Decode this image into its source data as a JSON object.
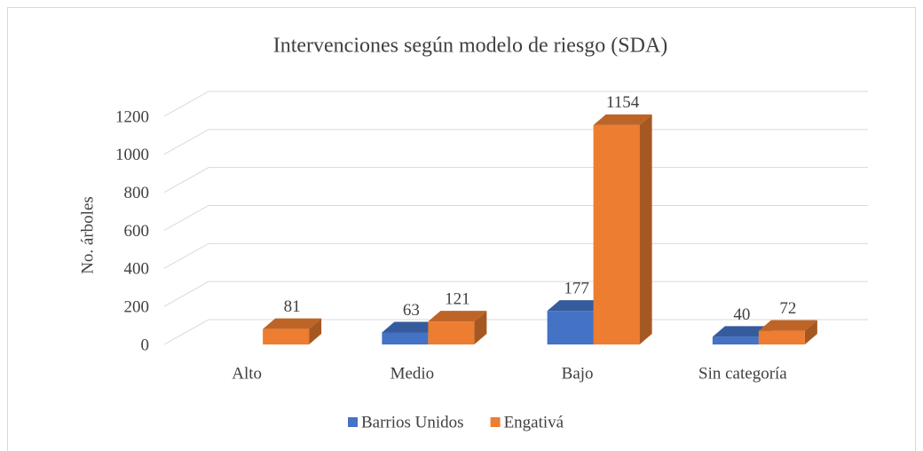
{
  "chart_data": {
    "type": "bar3d",
    "title": "Intervenciones según modelo de riesgo (SDA)",
    "y_label": "No. árboles",
    "categories": [
      "Alto",
      "Medio",
      "Bajo",
      "Sin categoría"
    ],
    "series": [
      {
        "name": "Barrios Unidos",
        "color": "#4472c4",
        "values": [
          null,
          63,
          177,
          40
        ]
      },
      {
        "name": "Engativá",
        "color": "#ed7d31",
        "values": [
          81,
          121,
          1154,
          72
        ]
      }
    ],
    "ylim": [
      0,
      1200
    ],
    "yticks": [
      0,
      200,
      400,
      600,
      800,
      1000,
      1200
    ],
    "grid": true,
    "legend": "bottom"
  }
}
